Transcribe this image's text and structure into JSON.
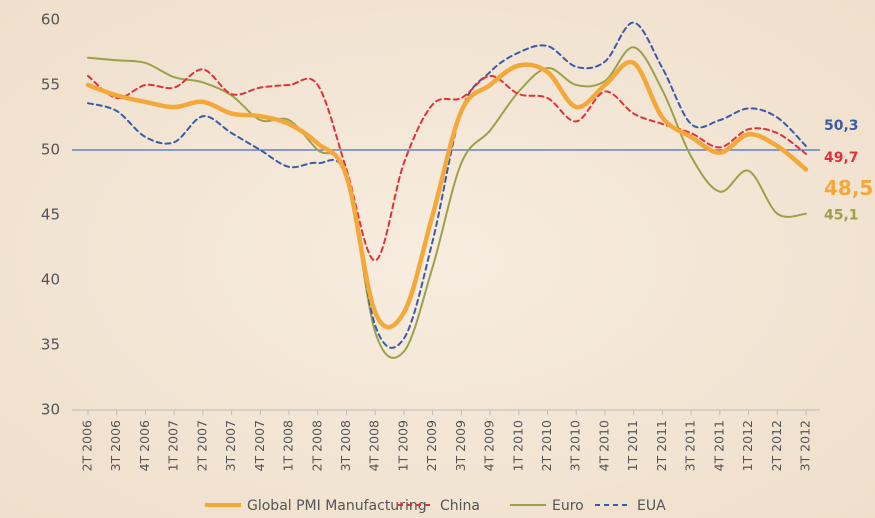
{
  "chart_data": {
    "type": "line",
    "categories": [
      "2T 2006",
      "3T 2006",
      "4T 2006",
      "1T 2007",
      "2T 2007",
      "3T 2007",
      "4T 2007",
      "1T 2008",
      "2T 2008",
      "3T 2008",
      "4T 2008",
      "1T 2009",
      "2T 2009",
      "3T 2009",
      "4T 2009",
      "1T 2010",
      "2T 2010",
      "3T 2010",
      "4T 2010",
      "1T 2011",
      "2T 2011",
      "3T 2011",
      "4T 2011",
      "1T 2012",
      "2T 2012",
      "3T 2012"
    ],
    "series": [
      {
        "name": "Global PMI Manufacturing",
        "color": "#f5a83a",
        "dash": false,
        "width": 4.5,
        "values": [
          55,
          54.2,
          53.7,
          53.3,
          53.7,
          52.8,
          52.6,
          52,
          50.5,
          48,
          37.5,
          37.5,
          45,
          53,
          55,
          56.5,
          56,
          53.3,
          55,
          56.7,
          52.5,
          51,
          49.8,
          51.2,
          50.3,
          48.5
        ],
        "value_labels": [
          null,
          null,
          null,
          null,
          null,
          null,
          null,
          null,
          null,
          null,
          null,
          null,
          null,
          null,
          null,
          null,
          null,
          null,
          null,
          null,
          null,
          null,
          null,
          null,
          null,
          "48,5"
        ]
      },
      {
        "name": "China",
        "color": "#e0323a",
        "dash": true,
        "width": 2,
        "values": [
          55.7,
          54,
          55,
          54.8,
          56.2,
          54.3,
          54.8,
          55,
          55,
          48.5,
          41.5,
          49,
          53.5,
          54,
          55.7,
          54.3,
          54,
          52.2,
          54.5,
          52.8,
          52,
          51.3,
          50.2,
          51.6,
          51.3,
          49.7
        ],
        "value_labels": [
          null,
          null,
          null,
          null,
          null,
          null,
          null,
          null,
          null,
          null,
          null,
          null,
          null,
          null,
          null,
          null,
          null,
          null,
          null,
          null,
          null,
          null,
          null,
          null,
          null,
          "49,7"
        ]
      },
      {
        "name": "Euro",
        "color": "#9ba14a",
        "dash": false,
        "width": 2,
        "values": [
          57.1,
          56.9,
          56.7,
          55.6,
          55.2,
          54.2,
          52.3,
          52.3,
          50,
          48.2,
          36,
          34.5,
          41,
          49,
          51.5,
          54.5,
          56.3,
          55,
          55.3,
          57.9,
          54.6,
          49.5,
          46.8,
          48.4,
          45.1,
          45.1
        ],
        "value_labels": [
          null,
          null,
          null,
          null,
          null,
          null,
          null,
          null,
          null,
          null,
          null,
          null,
          null,
          null,
          null,
          null,
          null,
          null,
          null,
          null,
          null,
          null,
          null,
          null,
          null,
          "45,1"
        ]
      },
      {
        "name": "EUA",
        "color": "#3b5ba8",
        "dash": true,
        "width": 2,
        "values": [
          53.6,
          53,
          51,
          50.6,
          52.6,
          51.3,
          50,
          48.7,
          49,
          48,
          36.5,
          35.5,
          43,
          53,
          56,
          57.5,
          58,
          56.4,
          56.8,
          59.8,
          56.3,
          52,
          52.3,
          53.2,
          52.5,
          50.3
        ],
        "value_labels": [
          null,
          null,
          null,
          null,
          null,
          null,
          null,
          null,
          null,
          null,
          null,
          null,
          null,
          null,
          null,
          null,
          null,
          null,
          null,
          null,
          null,
          null,
          null,
          null,
          null,
          "50,3"
        ]
      }
    ],
    "ylim": [
      30,
      60
    ],
    "yticks": [
      30,
      35,
      40,
      45,
      50,
      55,
      60
    ],
    "grid": false,
    "reference_line": 50,
    "reference_color": "#4a6cc0",
    "legend": "bottom"
  }
}
